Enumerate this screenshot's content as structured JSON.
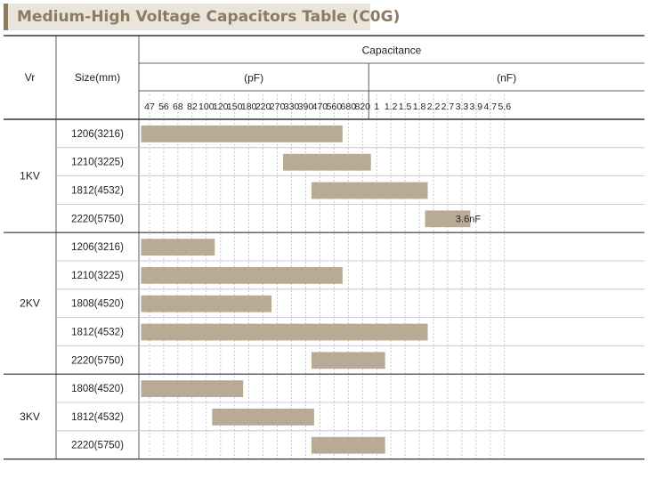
{
  "title": "Medium-High Voltage Capacitors Table (C0G)",
  "colors": {
    "bar": "#b8aa94",
    "title_bg": "#e9e4dc",
    "title_accent": "#8b7b61",
    "grid": "#bdbdbd",
    "rule": "#333333"
  },
  "header": {
    "vr": "Vr",
    "size": "Size(mm)",
    "capacitance": "Capacitance",
    "pf_unit": "(pF)",
    "nf_unit": "(nF)"
  },
  "chart_data": {
    "type": "table",
    "x": {
      "pf_ticks": [
        "47",
        "56",
        "68",
        "82",
        "100",
        "120",
        "150",
        "180",
        "220",
        "270",
        "330",
        "390",
        "470",
        "560",
        "680",
        "820"
      ],
      "nf_ticks": [
        "1",
        "1.2",
        "1.5",
        "1.8",
        "2.2",
        "2.7",
        "3.3",
        "3.9",
        "4.7",
        "5.6"
      ]
    },
    "groups": [
      {
        "vr": "1KV",
        "rows": [
          {
            "size": "1206(3216)",
            "from": "47pF",
            "to": "560pF"
          },
          {
            "size": "1210(3225)",
            "from": "330pF",
            "to": "820pF"
          },
          {
            "size": "1812(4532)",
            "from": "470pF",
            "to": "1.8nF"
          },
          {
            "size": "2220(5750)",
            "from": "2.2nF",
            "to": "3.3nF",
            "label": "3.6nF"
          }
        ]
      },
      {
        "vr": "2KV",
        "rows": [
          {
            "size": "1206(3216)",
            "from": "47pF",
            "to": "100pF"
          },
          {
            "size": "1210(3225)",
            "from": "47pF",
            "to": "560pF"
          },
          {
            "size": "1808(4520)",
            "from": "47pF",
            "to": "220pF"
          },
          {
            "size": "1812(4532)",
            "from": "47pF",
            "to": "1.8nF"
          },
          {
            "size": "2220(5750)",
            "from": "470pF",
            "to": "1nF"
          }
        ]
      },
      {
        "vr": "3KV",
        "rows": [
          {
            "size": "1808(4520)",
            "from": "47pF",
            "to": "150pF"
          },
          {
            "size": "1812(4532)",
            "from": "120pF",
            "to": "390pF"
          },
          {
            "size": "2220(5750)",
            "from": "470pF",
            "to": "1nF"
          }
        ]
      }
    ]
  }
}
